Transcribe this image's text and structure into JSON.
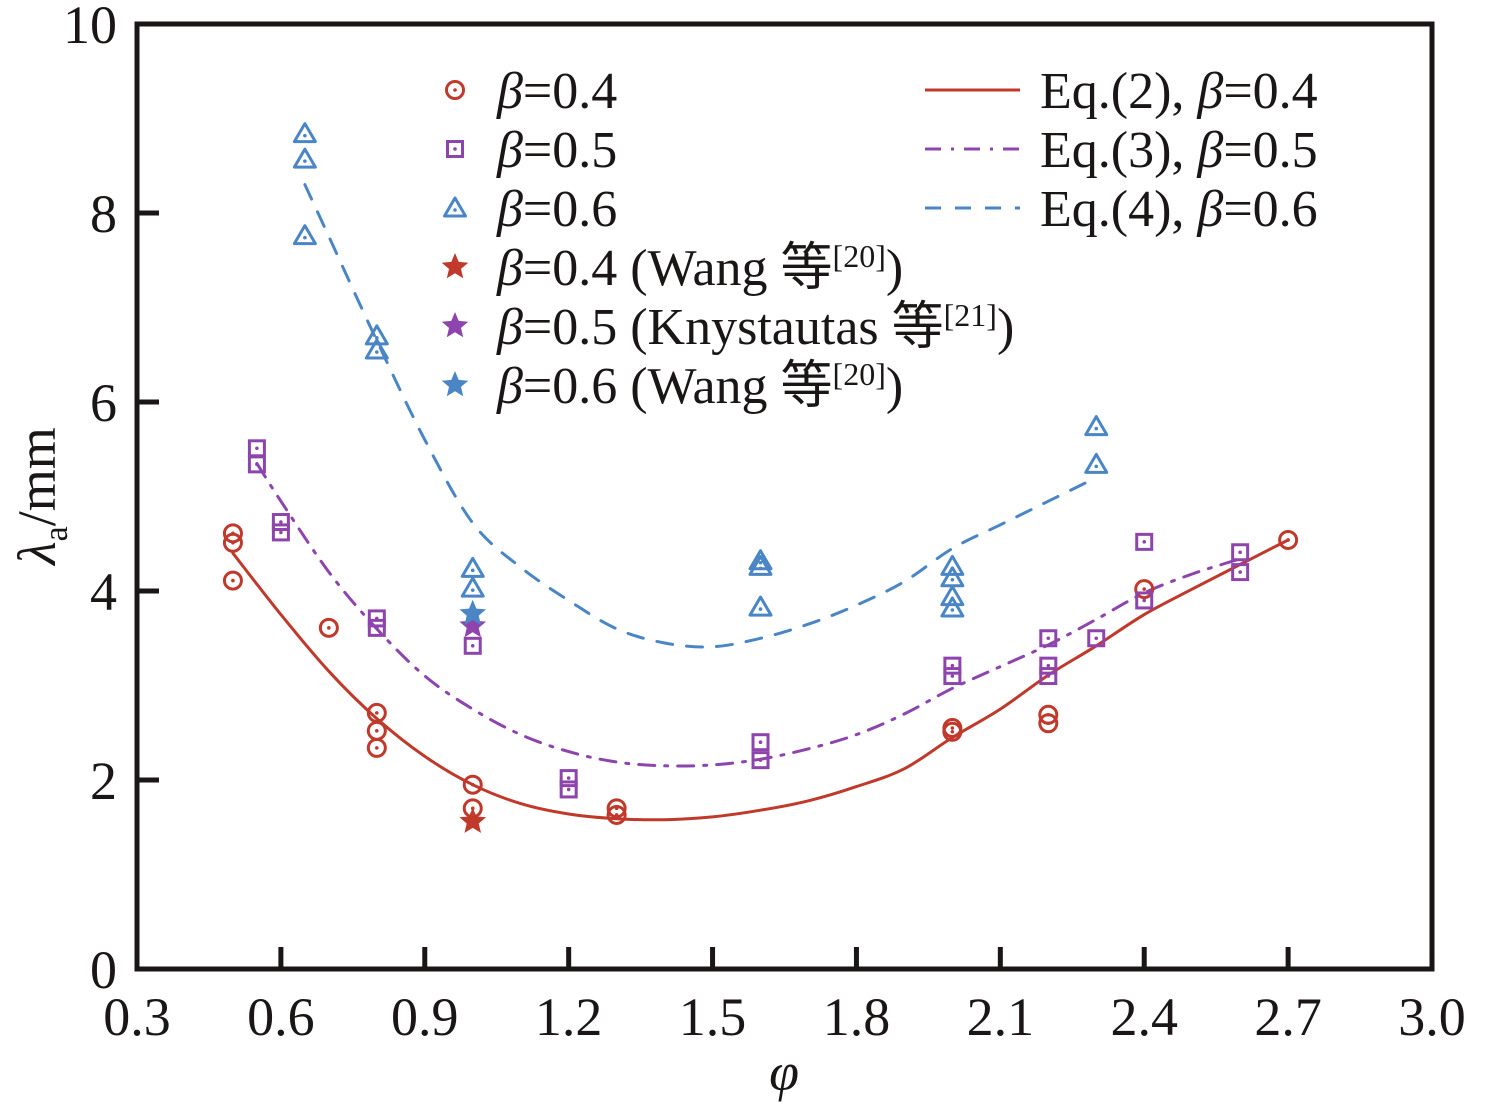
{
  "chart_data": {
    "type": "scatter",
    "title": "",
    "xlabel": "φ",
    "ylabel": "λa/mm",
    "ylabel_main": "λ",
    "ylabel_sub": "a",
    "ylabel_unit": "/mm",
    "xlim": [
      0.3,
      3.0
    ],
    "ylim": [
      0,
      10
    ],
    "grid": false,
    "legend_placement": "top",
    "x_ticks": [
      "0.3",
      "0.6",
      "0.9",
      "1.2",
      "1.5",
      "1.8",
      "2.1",
      "2.4",
      "2.7",
      "3.0"
    ],
    "x_tick_values": [
      0.3,
      0.6,
      0.9,
      1.2,
      1.5,
      1.8,
      2.1,
      2.4,
      2.7,
      3.0
    ],
    "y_ticks": [
      "0",
      "2",
      "4",
      "6",
      "8",
      "10"
    ],
    "y_tick_values": [
      0,
      2,
      4,
      6,
      8,
      10
    ],
    "colors": {
      "red": "#c0392b",
      "purple": "#8e44ad",
      "blue": "#4a86c5",
      "axis": "#1a1616"
    },
    "series": [
      {
        "name": "β=0.4",
        "label_beta": "β",
        "label_rest": "=0.4",
        "marker": "circle",
        "color": "#c0392b",
        "points": [
          [
            0.5,
            4.61
          ],
          [
            0.5,
            4.51
          ],
          [
            0.5,
            4.11
          ],
          [
            0.7,
            3.61
          ],
          [
            0.8,
            2.71
          ],
          [
            0.8,
            2.52
          ],
          [
            0.8,
            2.34
          ],
          [
            1.0,
            1.95
          ],
          [
            1.0,
            1.7
          ],
          [
            1.3,
            1.7
          ],
          [
            1.3,
            1.63
          ],
          [
            2.0,
            2.55
          ],
          [
            2.0,
            2.51
          ],
          [
            2.2,
            2.69
          ],
          [
            2.2,
            2.6
          ],
          [
            2.4,
            4.02
          ],
          [
            2.7,
            4.54
          ]
        ]
      },
      {
        "name": "β=0.5",
        "label_beta": "β",
        "label_rest": "=0.5",
        "marker": "square",
        "color": "#8e44ad",
        "points": [
          [
            0.55,
            5.51
          ],
          [
            0.55,
            5.34
          ],
          [
            0.6,
            4.73
          ],
          [
            0.6,
            4.62
          ],
          [
            0.8,
            3.71
          ],
          [
            0.8,
            3.61
          ],
          [
            1.0,
            3.42
          ],
          [
            1.2,
            2.02
          ],
          [
            1.2,
            1.9
          ],
          [
            1.6,
            2.4
          ],
          [
            1.6,
            2.21
          ],
          [
            2.0,
            3.21
          ],
          [
            2.0,
            3.1
          ],
          [
            2.2,
            3.5
          ],
          [
            2.2,
            3.21
          ],
          [
            2.2,
            3.1
          ],
          [
            2.3,
            3.5
          ],
          [
            2.4,
            4.52
          ],
          [
            2.4,
            3.9
          ],
          [
            2.6,
            4.41
          ],
          [
            2.6,
            4.2
          ]
        ]
      },
      {
        "name": "β=0.6",
        "label_beta": "β",
        "label_rest": "=0.6",
        "marker": "triangle",
        "color": "#4a86c5",
        "points": [
          [
            0.65,
            8.84
          ],
          [
            0.65,
            8.57
          ],
          [
            0.65,
            7.76
          ],
          [
            0.8,
            6.7
          ],
          [
            0.8,
            6.55
          ],
          [
            1.0,
            4.24
          ],
          [
            1.0,
            4.03
          ],
          [
            1.6,
            4.32
          ],
          [
            1.6,
            4.26
          ],
          [
            1.6,
            3.83
          ],
          [
            2.0,
            4.26
          ],
          [
            2.0,
            4.14
          ],
          [
            2.0,
            3.94
          ],
          [
            2.0,
            3.82
          ],
          [
            2.3,
            5.74
          ],
          [
            2.3,
            5.34
          ]
        ]
      },
      {
        "name": "β=0.4 (Wang 等[20])",
        "label_beta": "β",
        "label_rest": "=0.4 (Wang 等",
        "label_ref": "[20]",
        "label_close": ")",
        "marker": "star",
        "color": "#c0392b",
        "points": [
          [
            1.0,
            1.56
          ]
        ]
      },
      {
        "name": "β=0.5 (Knystautas 等[21])",
        "label_beta": "β",
        "label_rest": "=0.5 (Knystautas 等",
        "label_ref": "[21]",
        "label_close": ")",
        "marker": "star",
        "color": "#8e44ad",
        "points": [
          [
            1.0,
            3.63
          ]
        ]
      },
      {
        "name": "β=0.6 (Wang 等[20])",
        "label_beta": "β",
        "label_rest": "=0.6 (Wang 等",
        "label_ref": "[20]",
        "label_close": ")",
        "marker": "star",
        "color": "#4a86c5",
        "points": [
          [
            1.0,
            3.76
          ]
        ]
      }
    ],
    "fit_lines": [
      {
        "name": "Eq.(2), β=0.4",
        "label_eq": "Eq.(2), ",
        "label_beta": "β",
        "label_rest": "=0.4",
        "style": "solid",
        "color": "#c0392b",
        "points": [
          [
            0.5,
            4.4
          ],
          [
            0.6,
            3.75
          ],
          [
            0.7,
            3.15
          ],
          [
            0.8,
            2.65
          ],
          [
            0.9,
            2.25
          ],
          [
            1.0,
            1.95
          ],
          [
            1.1,
            1.75
          ],
          [
            1.2,
            1.64
          ],
          [
            1.3,
            1.59
          ],
          [
            1.4,
            1.58
          ],
          [
            1.5,
            1.61
          ],
          [
            1.6,
            1.68
          ],
          [
            1.7,
            1.78
          ],
          [
            1.8,
            1.93
          ],
          [
            1.9,
            2.12
          ],
          [
            2.0,
            2.45
          ],
          [
            2.1,
            2.75
          ],
          [
            2.2,
            3.11
          ],
          [
            2.3,
            3.42
          ],
          [
            2.4,
            3.75
          ],
          [
            2.5,
            4.02
          ],
          [
            2.6,
            4.28
          ],
          [
            2.7,
            4.54
          ]
        ]
      },
      {
        "name": "Eq.(3), β=0.5",
        "label_eq": "Eq.(3), ",
        "label_beta": "β",
        "label_rest": "=0.5",
        "style": "dashdot",
        "color": "#8e44ad",
        "points": [
          [
            0.55,
            5.35
          ],
          [
            0.6,
            4.95
          ],
          [
            0.7,
            4.2
          ],
          [
            0.8,
            3.6
          ],
          [
            0.9,
            3.1
          ],
          [
            1.0,
            2.75
          ],
          [
            1.1,
            2.48
          ],
          [
            1.2,
            2.3
          ],
          [
            1.3,
            2.19
          ],
          [
            1.4,
            2.15
          ],
          [
            1.5,
            2.16
          ],
          [
            1.6,
            2.22
          ],
          [
            1.7,
            2.33
          ],
          [
            1.8,
            2.48
          ],
          [
            1.9,
            2.7
          ],
          [
            2.0,
            2.97
          ],
          [
            2.1,
            3.2
          ],
          [
            2.2,
            3.43
          ],
          [
            2.3,
            3.7
          ],
          [
            2.4,
            3.98
          ],
          [
            2.5,
            4.18
          ],
          [
            2.6,
            4.34
          ]
        ]
      },
      {
        "name": "Eq.(4), β=0.6",
        "label_eq": "Eq.(4), ",
        "label_beta": "β",
        "label_rest": "=0.6",
        "style": "dashed",
        "color": "#4a86c5",
        "points": [
          [
            0.65,
            8.3
          ],
          [
            0.7,
            7.75
          ],
          [
            0.8,
            6.65
          ],
          [
            0.9,
            5.6
          ],
          [
            1.0,
            4.72
          ],
          [
            1.1,
            4.25
          ],
          [
            1.2,
            3.9
          ],
          [
            1.3,
            3.6
          ],
          [
            1.4,
            3.45
          ],
          [
            1.5,
            3.41
          ],
          [
            1.6,
            3.5
          ],
          [
            1.7,
            3.65
          ],
          [
            1.8,
            3.85
          ],
          [
            1.9,
            4.1
          ],
          [
            2.0,
            4.45
          ],
          [
            2.1,
            4.7
          ],
          [
            2.2,
            4.95
          ],
          [
            2.3,
            5.2
          ]
        ]
      }
    ]
  }
}
